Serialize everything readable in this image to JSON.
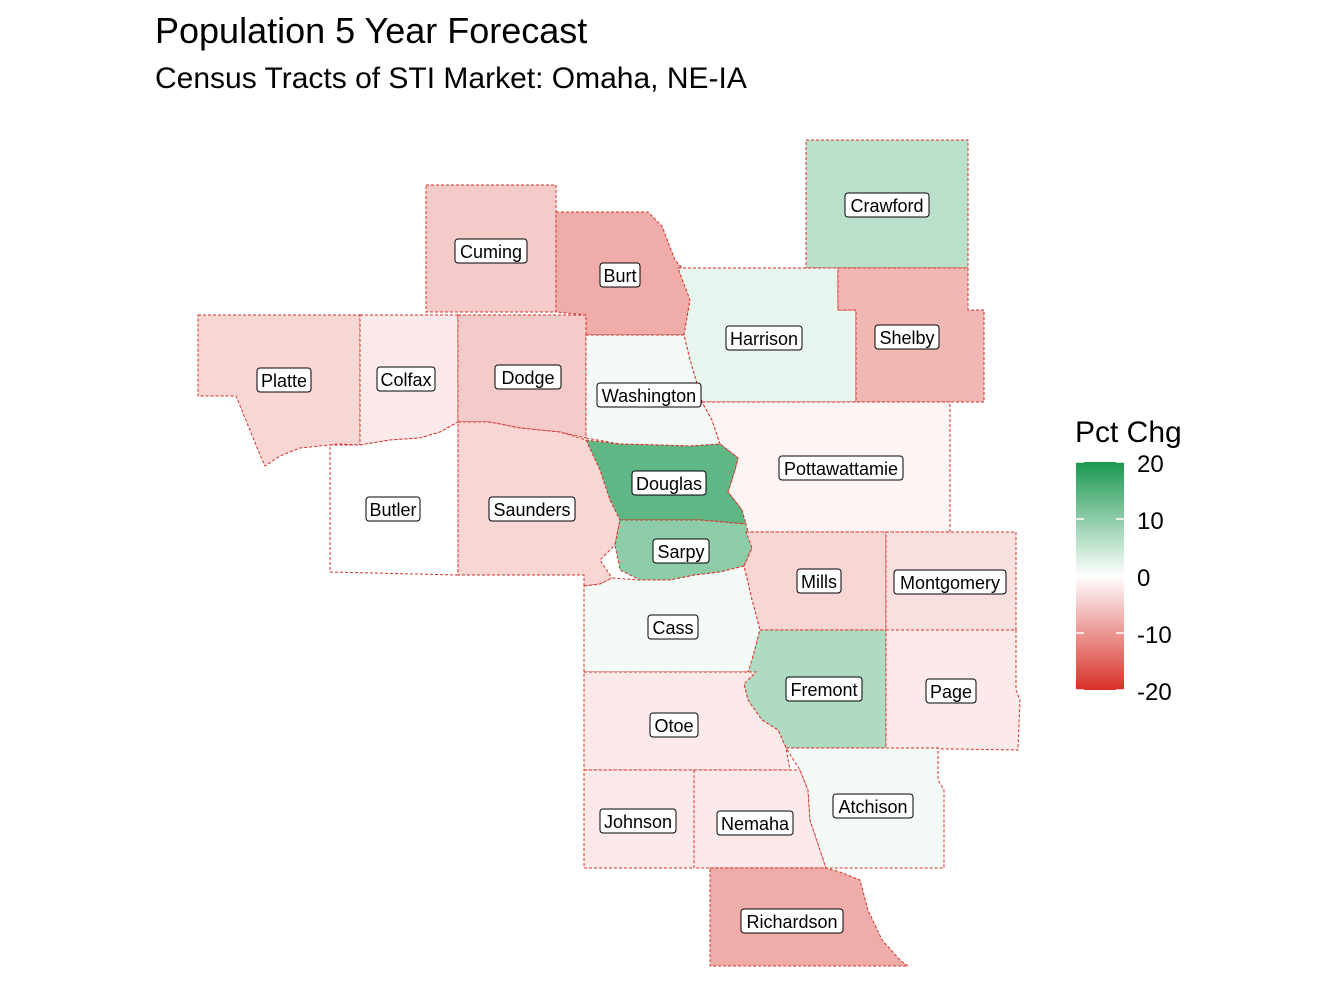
{
  "title": "Population 5 Year Forecast",
  "subtitle": "Census Tracts of STI Market: Omaha, NE-IA",
  "legend": {
    "title": "Pct Chg",
    "ticks": [
      "20",
      "10",
      "0",
      "-10",
      "-20"
    ],
    "colors": {
      "high": "#1a9850",
      "mid": "#ffffff",
      "low": "#d73027"
    }
  },
  "counties": [
    {
      "name": "Crawford",
      "pct_chg": 6
    },
    {
      "name": "Cuming",
      "pct_chg": -5
    },
    {
      "name": "Burt",
      "pct_chg": -8
    },
    {
      "name": "Harrison",
      "pct_chg": 2
    },
    {
      "name": "Shelby",
      "pct_chg": -7
    },
    {
      "name": "Platte",
      "pct_chg": -4
    },
    {
      "name": "Colfax",
      "pct_chg": -2
    },
    {
      "name": "Dodge",
      "pct_chg": -5
    },
    {
      "name": "Washington",
      "pct_chg": 1
    },
    {
      "name": "Pottawattamie",
      "pct_chg": -1
    },
    {
      "name": "Douglas",
      "pct_chg": 14
    },
    {
      "name": "Butler",
      "pct_chg": 0
    },
    {
      "name": "Saunders",
      "pct_chg": -4
    },
    {
      "name": "Sarpy",
      "pct_chg": 10
    },
    {
      "name": "Mills",
      "pct_chg": -4
    },
    {
      "name": "Montgomery",
      "pct_chg": -3
    },
    {
      "name": "Cass",
      "pct_chg": 1
    },
    {
      "name": "Fremont",
      "pct_chg": 7
    },
    {
      "name": "Page",
      "pct_chg": -2
    },
    {
      "name": "Otoe",
      "pct_chg": -2
    },
    {
      "name": "Johnson",
      "pct_chg": -2
    },
    {
      "name": "Nemaha",
      "pct_chg": -2
    },
    {
      "name": "Atchison",
      "pct_chg": 1
    },
    {
      "name": "Richardson",
      "pct_chg": -8
    }
  ]
}
